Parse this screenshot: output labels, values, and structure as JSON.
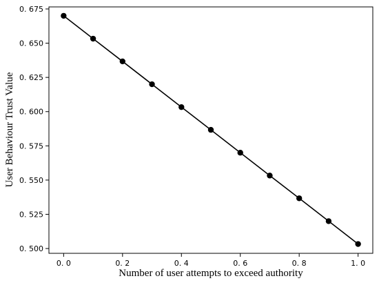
{
  "chart_data": {
    "type": "line",
    "title": "",
    "xlabel": "Number of user attempts to exceed authority",
    "ylabel": "User Behaviour Trust Value",
    "x": [
      0.0,
      0.1,
      0.2,
      0.3,
      0.4,
      0.5,
      0.6,
      0.7,
      0.8,
      0.9,
      1.0
    ],
    "series": [
      {
        "values": [
          0.67,
          0.6533,
          0.6367,
          0.62,
          0.6033,
          0.5867,
          0.57,
          0.5533,
          0.5367,
          0.52,
          0.5033
        ]
      }
    ],
    "xlim": [
      -0.05,
      1.05
    ],
    "ylim": [
      0.4965,
      0.6765
    ],
    "xticks": [
      0.0,
      0.2,
      0.4,
      0.6,
      0.8,
      1.0
    ],
    "xtick_labels": [
      "0. 0",
      "0. 2",
      "0. 4",
      "0. 6",
      "0. 8",
      "1. 0"
    ],
    "yticks": [
      0.5,
      0.525,
      0.55,
      0.575,
      0.6,
      0.625,
      0.65,
      0.675
    ],
    "ytick_labels": [
      "0. 500",
      "0. 525",
      "0. 550",
      "0. 575",
      "0. 600",
      "0. 625",
      "0. 650",
      "0. 675"
    ],
    "grid": false,
    "line_color": "#000000",
    "marker_color": "#000000",
    "marker": "circle"
  }
}
